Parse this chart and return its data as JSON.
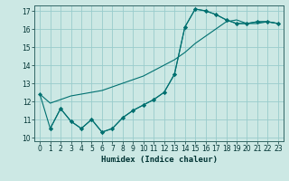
{
  "xlabel": "Humidex (Indice chaleur)",
  "bg_color": "#cce8e4",
  "line_color": "#007070",
  "grid_color": "#99cccc",
  "xlim": [
    -0.5,
    23.5
  ],
  "ylim": [
    9.8,
    17.3
  ],
  "yticks": [
    10,
    11,
    12,
    13,
    14,
    15,
    16,
    17
  ],
  "xticks": [
    0,
    1,
    2,
    3,
    4,
    5,
    6,
    7,
    8,
    9,
    10,
    11,
    12,
    13,
    14,
    15,
    16,
    17,
    18,
    19,
    20,
    21,
    22,
    23
  ],
  "line_zigzag_x": [
    0,
    1,
    2,
    3,
    4,
    5,
    6,
    7,
    8,
    9,
    10,
    11,
    12,
    13,
    14,
    15,
    16,
    17,
    18,
    19,
    20,
    21,
    22,
    23
  ],
  "line_zigzag_y": [
    12.4,
    10.5,
    11.6,
    10.9,
    10.5,
    11.0,
    10.3,
    10.5,
    11.1,
    11.5,
    11.8,
    12.1,
    12.5,
    13.5,
    16.1,
    17.1,
    17.0,
    16.8,
    16.5,
    16.3,
    16.3,
    16.4,
    16.4,
    16.3
  ],
  "line_smooth_x": [
    0,
    1,
    2,
    3,
    4,
    5,
    6,
    7,
    8,
    9,
    10,
    11,
    12,
    13,
    14,
    15,
    16,
    17,
    18,
    19,
    20,
    21,
    22,
    23
  ],
  "line_smooth_y": [
    12.4,
    11.9,
    12.1,
    12.3,
    12.4,
    12.5,
    12.6,
    12.8,
    13.0,
    13.2,
    13.4,
    13.7,
    14.0,
    14.3,
    14.7,
    15.2,
    15.6,
    16.0,
    16.4,
    16.5,
    16.3,
    16.3,
    16.4,
    16.3
  ],
  "line_mid_x": [
    1,
    2,
    3,
    4,
    5,
    6,
    7,
    8,
    9,
    10,
    11,
    12,
    13,
    14,
    15,
    16,
    17,
    18,
    19,
    20,
    21,
    22,
    23
  ],
  "line_mid_y": [
    10.5,
    11.6,
    10.9,
    10.5,
    11.0,
    10.3,
    10.5,
    11.1,
    11.5,
    11.8,
    12.1,
    12.5,
    13.5,
    16.1,
    17.1,
    17.0,
    16.8,
    16.5,
    16.3,
    16.3,
    16.4,
    16.4,
    16.3
  ]
}
